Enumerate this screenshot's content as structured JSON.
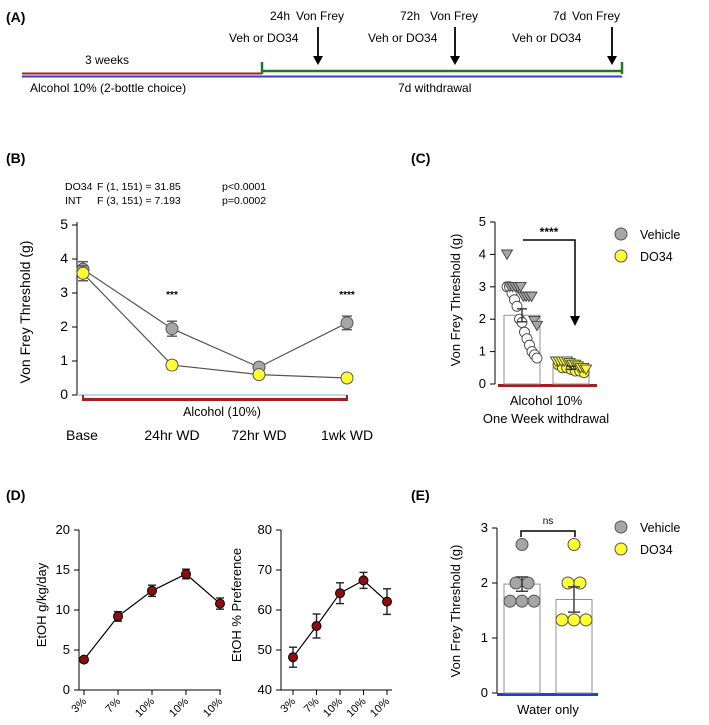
{
  "colors": {
    "vehicle": "#a6a6a6",
    "do34": "#ffff33",
    "alcohol": "#a31f1f",
    "withdrawal": "#1f7a1f",
    "water": "#1f3fdd",
    "timeline_blue": "#3b3bbf",
    "intake": "#8b0d0d",
    "bar_outline": "#909090"
  },
  "panelA": {
    "label": "(A)",
    "weeks_label": "3 weeks",
    "alcohol_label": "Alcohol 10% (2-bottle choice)",
    "withdrawal_label": "7d withdrawal",
    "events": [
      {
        "time": "24h",
        "test": "Von Frey",
        "treatment": "Veh or DO34"
      },
      {
        "time": "72h",
        "test": "Von Frey",
        "treatment": "Veh or DO34"
      },
      {
        "time": "7d",
        "test": "Von Frey",
        "treatment": "Veh or DO34"
      }
    ]
  },
  "chart_data": [
    {
      "panel": "(B)",
      "type": "line",
      "ylabel": "Von Frey Threshold (g)",
      "ylim": [
        0,
        5
      ],
      "yticks": [
        "0",
        "1",
        "2",
        "3",
        "4",
        "5"
      ],
      "categories": [
        "Base",
        "24hr WD",
        "72hr WD",
        "1wk WD"
      ],
      "bar_label": "Alcohol (10%)",
      "series": [
        {
          "name": "Vehicle",
          "values": [
            3.7,
            1.95,
            0.82,
            2.12
          ],
          "errors": [
            0.22,
            0.22,
            0.08,
            0.2
          ]
        },
        {
          "name": "DO34",
          "values": [
            3.58,
            0.88,
            0.6,
            0.5
          ],
          "errors": [
            0.22,
            0.12,
            0.06,
            0.05
          ]
        }
      ],
      "significance": [
        {
          "category": "24hr WD",
          "text": "***"
        },
        {
          "category": "1wk WD",
          "text": "****"
        }
      ],
      "stats": [
        {
          "factor": "DO34",
          "f": "F (1, 151) = 31.85",
          "p": "p<0.0001"
        },
        {
          "factor": "INT",
          "f": "F (3, 151) = 7.193",
          "p": "p=0.0002"
        }
      ]
    },
    {
      "panel": "(C)",
      "type": "bar",
      "ylabel": "Von Frey Threshold (g)",
      "ylim": [
        0,
        5
      ],
      "yticks": [
        "0",
        "1",
        "2",
        "3",
        "4",
        "5"
      ],
      "xlabel_line1": "Alcohol 10%",
      "xlabel_line2": "One Week withdrawal",
      "significance": "****",
      "bars": [
        {
          "name": "Vehicle",
          "value": 2.12,
          "error": 0.2
        },
        {
          "name": "DO34",
          "value": 0.5,
          "error": 0.05
        }
      ],
      "points": {
        "vehicle_triangles": [
          4.0,
          3.0,
          3.0,
          3.0,
          3.0,
          3.0,
          2.7,
          2.7,
          2.7,
          2.7,
          1.95,
          1.8
        ],
        "vehicle_circles": [
          3.0,
          3.0,
          2.8,
          2.6,
          2.4,
          2.0,
          1.9,
          1.6,
          1.4,
          1.2,
          1.0,
          0.9,
          0.8
        ],
        "do34_triangles": [
          0.7,
          0.7,
          0.7,
          0.7,
          0.7,
          0.65,
          0.6,
          0.6,
          0.55,
          0.5,
          0.5,
          0.45
        ],
        "do34_circles": [
          0.6,
          0.5,
          0.5,
          0.45,
          0.4,
          0.4,
          0.35
        ]
      }
    },
    {
      "panel": "(D)",
      "type": "line",
      "ylabel": "EtOH g/kg/day",
      "ylim": [
        0,
        20
      ],
      "yticks": [
        "0",
        "5",
        "10",
        "15",
        "20"
      ],
      "categories": [
        "3%",
        "7%",
        "10%",
        "10%",
        "10%"
      ],
      "series": [
        {
          "name": "EtOH intake",
          "values": [
            3.8,
            9.2,
            12.4,
            14.5,
            10.8
          ],
          "errors": [
            0.2,
            0.6,
            0.7,
            0.6,
            0.7
          ]
        }
      ]
    },
    {
      "panel": "(D)",
      "type": "line",
      "ylabel": "EtOH % Preference",
      "ylim": [
        40,
        80
      ],
      "yticks": [
        "40",
        "50",
        "60",
        "70",
        "80"
      ],
      "categories": [
        "3%",
        "7%",
        "10%",
        "10%",
        "10%"
      ],
      "series": [
        {
          "name": "EtOH preference",
          "values": [
            48.2,
            56.0,
            64.2,
            67.4,
            62.1
          ],
          "errors": [
            2.5,
            3.0,
            2.6,
            2.0,
            3.2
          ]
        }
      ]
    },
    {
      "panel": "(E)",
      "type": "bar",
      "ylabel": "Von Frey Threshold (g)",
      "ylim": [
        0,
        3
      ],
      "yticks": [
        "0",
        "1",
        "2",
        "3"
      ],
      "xlabel": "Water only",
      "significance": "ns",
      "bars": [
        {
          "name": "Vehicle",
          "value": 1.98,
          "error": 0.13
        },
        {
          "name": "DO34",
          "value": 1.7,
          "error": 0.23
        }
      ],
      "points": {
        "vehicle": [
          2.7,
          2.0,
          2.0,
          1.67,
          1.67,
          1.67
        ],
        "do34": [
          2.7,
          2.0,
          2.0,
          1.33,
          1.33,
          1.33
        ]
      }
    }
  ],
  "legend": {
    "vehicle": "Vehicle",
    "do34": "DO34"
  }
}
